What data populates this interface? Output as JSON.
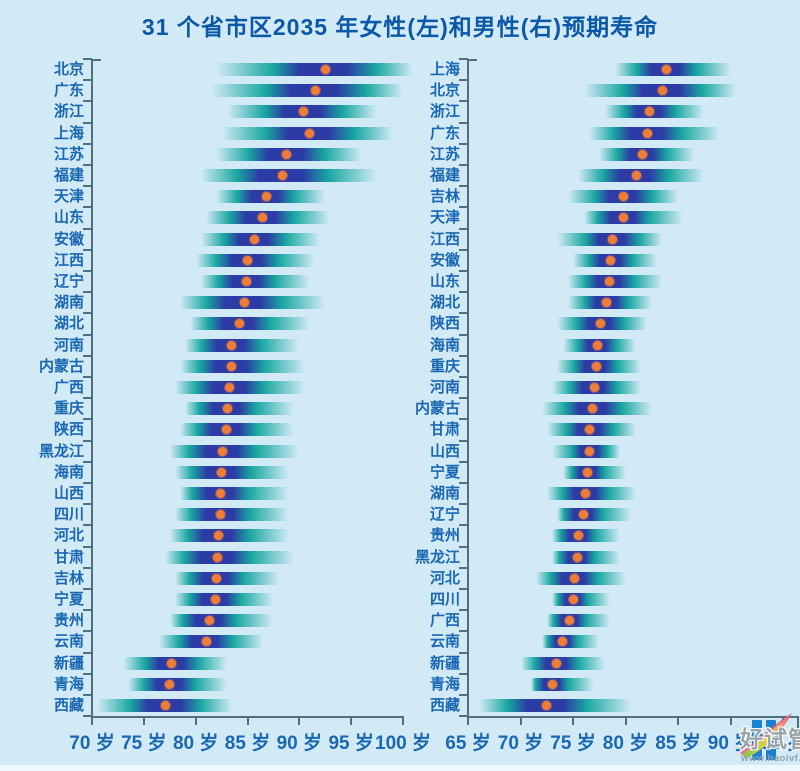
{
  "title": "31 个省市区2035 年女性(左)和男性(右)预期寿命",
  "colors": {
    "background": "#d2eaf6",
    "title_text": "#0c58a8",
    "label_text": "#1a67b2",
    "axis": "#50707f",
    "band_teal": "#19a7a1",
    "band_indigo": "#2c3ba5",
    "median_dot": "#ee7e37",
    "watermark_blue": "#1a80d0"
  },
  "watermark": {
    "bars_icon": "pause-bars-icon",
    "feather_icon": "feather-icon",
    "text": "好试管",
    "url": "www.haoivf.com"
  },
  "chart_data": [
    {
      "type": "dot-interval",
      "title": "女性(左)预期寿命",
      "unit": "岁",
      "axis_min": 70,
      "axis_max": 100,
      "x_ticks": [
        "70 岁",
        "75 岁",
        "80 岁",
        "85 岁",
        "90 岁",
        "95 岁",
        "100 岁"
      ],
      "provinces": [
        {
          "name": "北京",
          "median": 92.5,
          "low": 82.0,
          "high": 101.0
        },
        {
          "name": "广东",
          "median": 91.6,
          "low": 81.5,
          "high": 100.0
        },
        {
          "name": "浙江",
          "median": 90.4,
          "low": 83.0,
          "high": 97.5
        },
        {
          "name": "上海",
          "median": 91.0,
          "low": 82.5,
          "high": 99.0
        },
        {
          "name": "江苏",
          "median": 88.8,
          "low": 82.0,
          "high": 96.0
        },
        {
          "name": "福建",
          "median": 88.4,
          "low": 80.5,
          "high": 97.5
        },
        {
          "name": "天津",
          "median": 86.8,
          "low": 82.0,
          "high": 92.5
        },
        {
          "name": "山东",
          "median": 86.4,
          "low": 81.0,
          "high": 93.0
        },
        {
          "name": "安徽",
          "median": 85.7,
          "low": 80.5,
          "high": 92.0
        },
        {
          "name": "江西",
          "median": 85.0,
          "low": 80.0,
          "high": 91.5
        },
        {
          "name": "辽宁",
          "median": 84.9,
          "low": 80.5,
          "high": 91.0
        },
        {
          "name": "湖南",
          "median": 84.7,
          "low": 78.5,
          "high": 92.5
        },
        {
          "name": "湖北",
          "median": 84.2,
          "low": 79.5,
          "high": 91.0
        },
        {
          "name": "河南",
          "median": 83.5,
          "low": 79.0,
          "high": 90.0
        },
        {
          "name": "内蒙古",
          "median": 83.5,
          "low": 78.5,
          "high": 90.5
        },
        {
          "name": "广西",
          "median": 83.3,
          "low": 78.0,
          "high": 90.5
        },
        {
          "name": "重庆",
          "median": 83.1,
          "low": 79.0,
          "high": 89.5
        },
        {
          "name": "陕西",
          "median": 83.0,
          "low": 78.5,
          "high": 89.5
        },
        {
          "name": "黑龙江",
          "median": 82.6,
          "low": 77.5,
          "high": 90.0
        },
        {
          "name": "海南",
          "median": 82.5,
          "low": 78.0,
          "high": 89.0
        },
        {
          "name": "山西",
          "median": 82.4,
          "low": 78.5,
          "high": 89.0
        },
        {
          "name": "四川",
          "median": 82.4,
          "low": 78.0,
          "high": 89.0
        },
        {
          "name": "河北",
          "median": 82.2,
          "low": 77.5,
          "high": 89.0
        },
        {
          "name": "甘肃",
          "median": 82.1,
          "low": 77.0,
          "high": 89.5
        },
        {
          "name": "吉林",
          "median": 82.0,
          "low": 78.0,
          "high": 88.0
        },
        {
          "name": "宁夏",
          "median": 81.9,
          "low": 78.0,
          "high": 87.5
        },
        {
          "name": "贵州",
          "median": 81.3,
          "low": 77.5,
          "high": 87.5
        },
        {
          "name": "云南",
          "median": 81.0,
          "low": 76.5,
          "high": 86.5
        },
        {
          "name": "新疆",
          "median": 77.7,
          "low": 73.0,
          "high": 83.0
        },
        {
          "name": "青海",
          "median": 77.5,
          "low": 73.5,
          "high": 83.0
        },
        {
          "name": "西藏",
          "median": 77.1,
          "low": 70.5,
          "high": 83.5
        }
      ]
    },
    {
      "type": "dot-interval",
      "title": "男性(右)预期寿命",
      "unit": "岁",
      "axis_min": 65,
      "axis_max": 95,
      "x_ticks": [
        "65 岁",
        "70 岁",
        "75 岁",
        "80 岁",
        "85 岁",
        "90 岁",
        "95 岁"
      ],
      "provinces": [
        {
          "name": "上海",
          "median": 83.9,
          "low": 79.0,
          "high": 90.0
        },
        {
          "name": "北京",
          "median": 83.5,
          "low": 76.0,
          "high": 90.5
        },
        {
          "name": "浙江",
          "median": 82.3,
          "low": 78.0,
          "high": 87.5
        },
        {
          "name": "广东",
          "median": 82.1,
          "low": 76.5,
          "high": 89.0
        },
        {
          "name": "江苏",
          "median": 81.6,
          "low": 77.5,
          "high": 86.5
        },
        {
          "name": "福建",
          "median": 81.0,
          "low": 75.5,
          "high": 87.5
        },
        {
          "name": "吉林",
          "median": 79.8,
          "low": 74.5,
          "high": 85.0
        },
        {
          "name": "天津",
          "median": 79.8,
          "low": 76.0,
          "high": 85.5
        },
        {
          "name": "江西",
          "median": 78.8,
          "low": 73.5,
          "high": 83.5
        },
        {
          "name": "安徽",
          "median": 78.6,
          "low": 75.0,
          "high": 83.0
        },
        {
          "name": "山东",
          "median": 78.5,
          "low": 74.5,
          "high": 83.5
        },
        {
          "name": "湖北",
          "median": 78.2,
          "low": 74.5,
          "high": 82.5
        },
        {
          "name": "陕西",
          "median": 77.6,
          "low": 73.5,
          "high": 82.0
        },
        {
          "name": "海南",
          "median": 77.3,
          "low": 74.0,
          "high": 81.0
        },
        {
          "name": "重庆",
          "median": 77.2,
          "low": 73.5,
          "high": 81.5
        },
        {
          "name": "河南",
          "median": 77.0,
          "low": 73.0,
          "high": 81.5
        },
        {
          "name": "内蒙古",
          "median": 76.9,
          "low": 72.0,
          "high": 82.5
        },
        {
          "name": "甘肃",
          "median": 76.6,
          "low": 72.5,
          "high": 81.0
        },
        {
          "name": "山西",
          "median": 76.6,
          "low": 73.0,
          "high": 79.5
        },
        {
          "name": "宁夏",
          "median": 76.4,
          "low": 74.0,
          "high": 80.0
        },
        {
          "name": "湖南",
          "median": 76.2,
          "low": 72.5,
          "high": 81.0
        },
        {
          "name": "辽宁",
          "median": 76.0,
          "low": 73.5,
          "high": 80.5
        },
        {
          "name": "贵州",
          "median": 75.5,
          "low": 73.0,
          "high": 79.5
        },
        {
          "name": "黑龙江",
          "median": 75.4,
          "low": 73.0,
          "high": 79.5
        },
        {
          "name": "河北",
          "median": 75.1,
          "low": 71.5,
          "high": 80.0
        },
        {
          "name": "四川",
          "median": 75.0,
          "low": 73.0,
          "high": 78.5
        },
        {
          "name": "广西",
          "median": 74.7,
          "low": 72.5,
          "high": 78.5
        },
        {
          "name": "云南",
          "median": 74.0,
          "low": 72.0,
          "high": 77.5
        },
        {
          "name": "新疆",
          "median": 73.4,
          "low": 70.0,
          "high": 78.0
        },
        {
          "name": "青海",
          "median": 73.0,
          "low": 71.0,
          "high": 77.0
        },
        {
          "name": "西藏",
          "median": 72.5,
          "low": 66.0,
          "high": 80.5
        }
      ]
    }
  ]
}
